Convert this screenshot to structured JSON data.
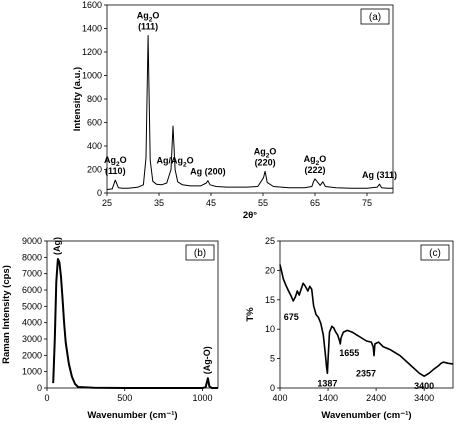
{
  "chart_data": [
    {
      "type": "line",
      "panel_label": "(a)",
      "xlabel": "2θ°",
      "ylabel": "Intensity (a.u.)",
      "xlim": [
        25,
        80
      ],
      "ylim": [
        0,
        1600
      ],
      "xticks": [
        25,
        35,
        45,
        55,
        65,
        75
      ],
      "yticks": [
        0,
        200,
        400,
        600,
        800,
        1000,
        1200,
        1400,
        1600
      ],
      "series": [
        {
          "x": [
            25,
            26,
            26.6,
            27.2,
            28,
            29,
            30,
            31,
            32,
            32.5,
            32.9,
            33.3,
            33.8,
            34.5,
            35.5,
            36.5,
            37.3,
            37.7,
            38.1,
            38.6,
            39.5,
            41,
            43,
            44.1,
            44.4,
            44.8,
            46,
            48,
            50,
            52,
            54,
            55.1,
            55.4,
            55.8,
            57,
            60,
            63,
            64.4,
            64.7,
            65,
            66,
            66.5,
            67,
            69,
            72,
            75,
            77,
            77.4,
            77.8,
            79,
            80
          ],
          "y": [
            30,
            35,
            110,
            45,
            40,
            40,
            45,
            50,
            70,
            300,
            1340,
            280,
            100,
            75,
            70,
            85,
            200,
            570,
            200,
            95,
            70,
            60,
            60,
            85,
            105,
            70,
            55,
            50,
            50,
            50,
            55,
            130,
            185,
            90,
            55,
            45,
            45,
            55,
            95,
            120,
            65,
            95,
            55,
            45,
            40,
            40,
            50,
            75,
            45,
            40,
            40
          ]
        }
      ],
      "annotations": [
        {
          "main": "Ag",
          "sub": "2",
          "rest": "O",
          "line2": "(110)",
          "x": 26.6
        },
        {
          "main": "Ag",
          "sub": "2",
          "rest": "O",
          "line2": "(111)",
          "x": 32.9
        },
        {
          "main": "Ag/Ag",
          "sub": "2",
          "rest": "O",
          "line2": "",
          "x": 38.1
        },
        {
          "main": "Ag (200)",
          "sub": "",
          "rest": "",
          "line2": "",
          "x": 44.4
        },
        {
          "main": "Ag",
          "sub": "2",
          "rest": "O",
          "line2": "(220)",
          "x": 55.4
        },
        {
          "main": "Ag",
          "sub": "2",
          "rest": "O",
          "line2": "(222)",
          "x": 65
        },
        {
          "main": "Ag (311)",
          "sub": "",
          "rest": "",
          "line2": "",
          "x": 77.4
        }
      ]
    },
    {
      "type": "line",
      "panel_label": "(b)",
      "xlabel": "Wavenumber (cm⁻¹)",
      "ylabel": "Raman Intensity (cps)",
      "xlim": [
        0,
        1100
      ],
      "ylim": [
        0,
        9000
      ],
      "xticks": [
        0,
        500,
        1000
      ],
      "yticks": [
        0,
        1000,
        2000,
        3000,
        4000,
        5000,
        6000,
        7000,
        8000,
        9000
      ],
      "series": [
        {
          "x": [
            40,
            50,
            60,
            70,
            80,
            90,
            100,
            110,
            120,
            140,
            160,
            180,
            200,
            300,
            500,
            800,
            1000,
            1020,
            1035,
            1045,
            1060,
            1100
          ],
          "y": [
            300,
            3000,
            6500,
            7900,
            7700,
            6800,
            5500,
            4000,
            2800,
            1500,
            700,
            250,
            60,
            10,
            0,
            0,
            0,
            50,
            600,
            100,
            0,
            0
          ]
        }
      ],
      "annotations": [
        {
          "text": "(Ag)",
          "x": 70,
          "y": 7900
        },
        {
          "text": "(Ag-O)",
          "x": 1035,
          "y": 600
        }
      ]
    },
    {
      "type": "line",
      "panel_label": "(c)",
      "xlabel": "Wavenumber (cm⁻¹)",
      "ylabel": "T%",
      "xlim": [
        400,
        4000
      ],
      "ylim": [
        0,
        25
      ],
      "xticks": [
        400,
        1400,
        2400,
        3400
      ],
      "yticks": [
        0,
        5,
        10,
        15,
        20,
        25
      ],
      "series": [
        {
          "x": [
            400,
            430,
            470,
            520,
            580,
            640,
            675,
            720,
            760,
            800,
            840,
            880,
            920,
            980,
            1020,
            1060,
            1100,
            1150,
            1200,
            1250,
            1300,
            1340,
            1370,
            1387,
            1400,
            1430,
            1480,
            1520,
            1560,
            1600,
            1640,
            1655,
            1670,
            1720,
            1800,
            1900,
            2000,
            2100,
            2200,
            2300,
            2340,
            2357,
            2375,
            2450,
            2550,
            2700,
            2900,
            3100,
            3300,
            3400,
            3500,
            3600,
            3700,
            3750,
            3800,
            3850,
            3900,
            4000
          ],
          "y": [
            21,
            20,
            18.5,
            17.5,
            16.5,
            15.5,
            14.8,
            15.5,
            16.5,
            15.8,
            16.8,
            17.8,
            17.4,
            16.5,
            17.3,
            16.8,
            14,
            12.5,
            12,
            11,
            9,
            6,
            3.5,
            2.5,
            5,
            9.5,
            10.5,
            10.2,
            9.5,
            9,
            8,
            7.5,
            8.5,
            9.5,
            9.8,
            9.5,
            9,
            8.5,
            8,
            7.8,
            7,
            5.5,
            7.5,
            7.8,
            7,
            6.5,
            5.5,
            4,
            2.5,
            2,
            2.5,
            3.2,
            3.8,
            4.2,
            4.4,
            4.3,
            4.2,
            4.1
          ]
        }
      ],
      "annotations": [
        {
          "text": "675",
          "x": 675,
          "y": 14.8
        },
        {
          "text": "1387",
          "x": 1387,
          "y": 2.5
        },
        {
          "text": "1655",
          "x": 1655,
          "y": 7.5
        },
        {
          "text": "2357",
          "x": 2357,
          "y": 5.5
        },
        {
          "text": "3400",
          "x": 3400,
          "y": 2
        }
      ]
    }
  ]
}
